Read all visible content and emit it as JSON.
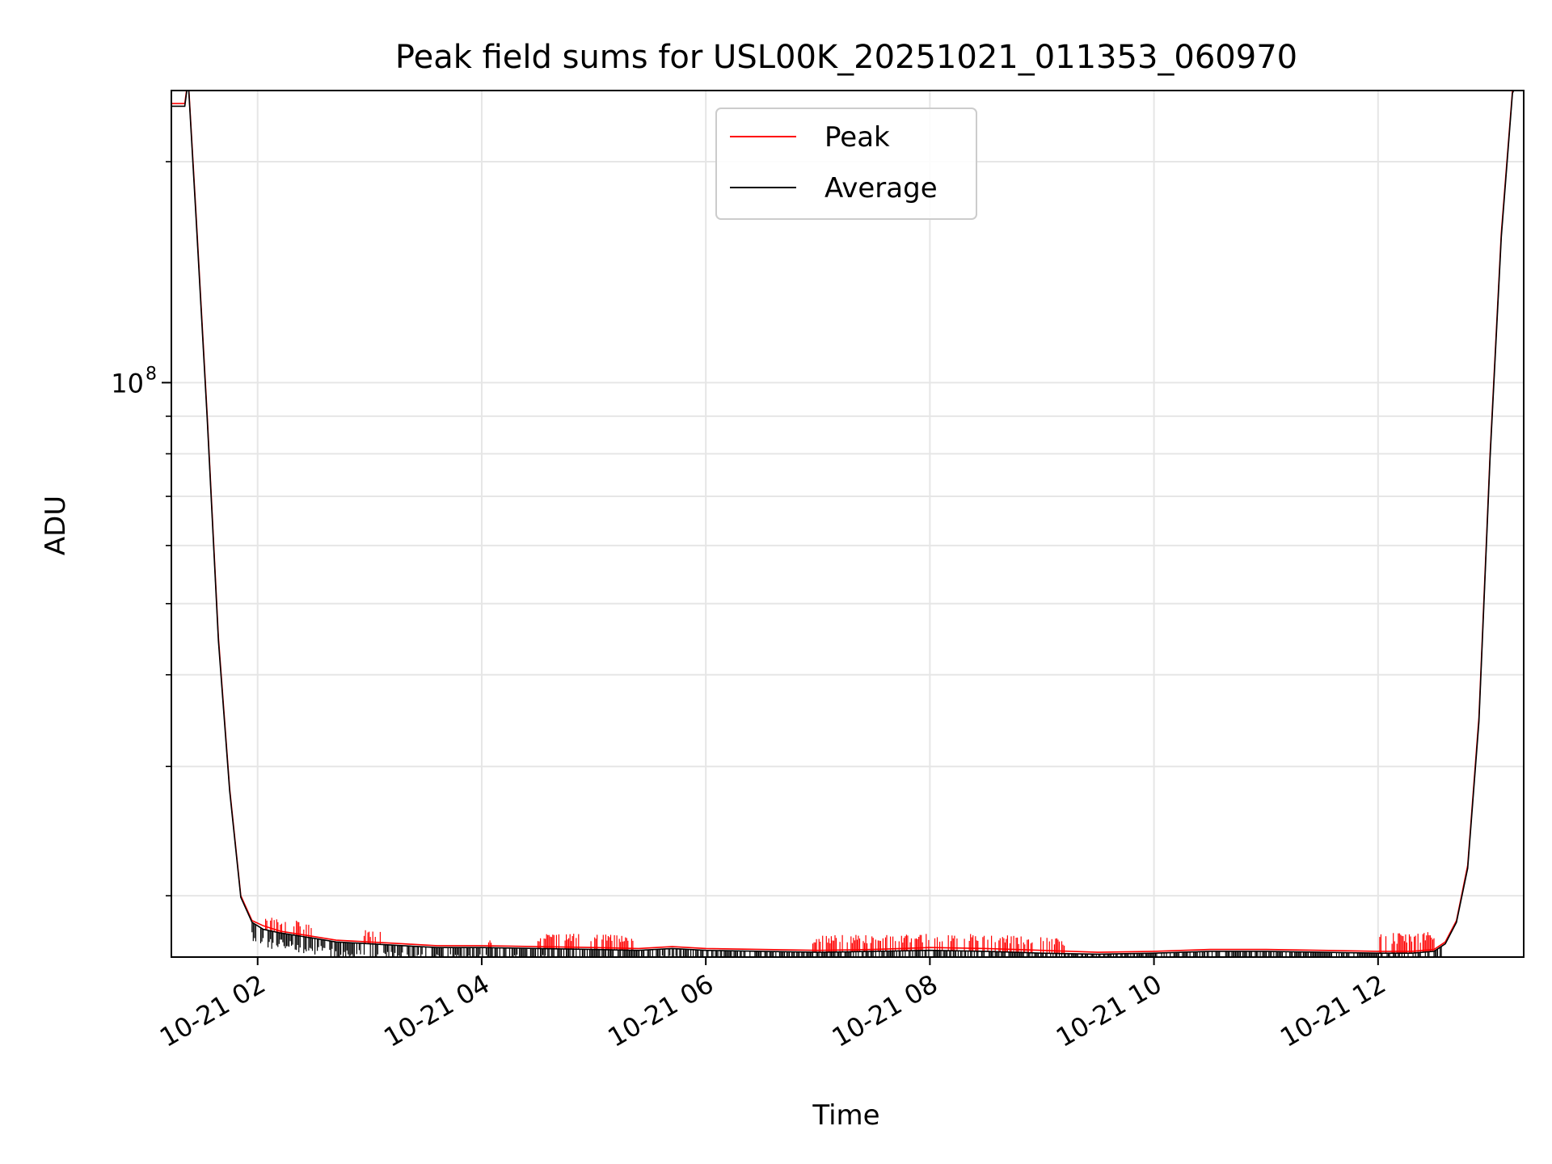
{
  "chart_data": {
    "type": "line",
    "title": "Peak field sums for USL00K_20251021_011353_060970",
    "xlabel": "Time",
    "ylabel": "ADU",
    "yscale": "log",
    "grid": true,
    "legend_position": "upper center",
    "x_units": "hours since 2025-10-21 00:00",
    "xlim": [
      1.23,
      13.3
    ],
    "ylim": [
      16500000,
      250000000
    ],
    "x_tick_values": [
      2,
      4,
      6,
      8,
      10,
      12
    ],
    "x_tick_labels": [
      "10-21 02",
      "10-21 04",
      "10-21 06",
      "10-21 08",
      "10-21 10",
      "10-21 12"
    ],
    "y_tick_major": {
      "value": 100000000,
      "base": "10",
      "exponent": "8"
    },
    "y_minor_ticks": [
      20000000,
      30000000,
      40000000,
      50000000,
      60000000,
      70000000,
      80000000,
      90000000,
      200000000
    ],
    "series": [
      {
        "name": "Peak",
        "color": "#ff0000",
        "x": [
          1.23,
          1.35,
          1.38,
          1.45,
          1.55,
          1.65,
          1.75,
          1.85,
          1.95,
          2.05,
          2.2,
          2.4,
          2.7,
          3.0,
          3.3,
          3.6,
          4.0,
          4.5,
          5.0,
          5.4,
          5.7,
          6.0,
          6.5,
          7.0,
          7.5,
          8.0,
          8.5,
          9.0,
          9.5,
          10.0,
          10.5,
          11.0,
          11.5,
          12.0,
          12.3,
          12.5,
          12.6,
          12.7,
          12.8,
          12.9,
          13.0,
          13.1,
          13.2,
          13.3
        ],
        "y": [
          240000000,
          240000000,
          260000000,
          170000000,
          90000000,
          45000000,
          28000000,
          20000000,
          18500000,
          18200000,
          17900000,
          17700000,
          17400000,
          17300000,
          17200000,
          17100000,
          17100000,
          17050000,
          17000000,
          16950000,
          17050000,
          16950000,
          16900000,
          16850000,
          16900000,
          17000000,
          16950000,
          16850000,
          16750000,
          16800000,
          16900000,
          16900000,
          16850000,
          16800000,
          16800000,
          16900000,
          17300000,
          18500000,
          22000000,
          35000000,
          80000000,
          160000000,
          250000000,
          270000000
        ]
      },
      {
        "name": "Average",
        "color": "#000000",
        "x": [
          1.23,
          1.35,
          1.38,
          1.45,
          1.55,
          1.65,
          1.75,
          1.85,
          1.95,
          2.05,
          2.2,
          2.4,
          2.7,
          3.0,
          3.3,
          3.6,
          4.0,
          4.5,
          5.0,
          5.4,
          5.7,
          6.0,
          6.5,
          7.0,
          7.5,
          8.0,
          8.5,
          9.0,
          9.5,
          10.0,
          10.5,
          11.0,
          11.5,
          12.0,
          12.3,
          12.5,
          12.6,
          12.7,
          12.8,
          12.9,
          13.0,
          13.1,
          13.2,
          13.3
        ],
        "y": [
          238000000,
          238000000,
          258000000,
          168000000,
          89000000,
          44500000,
          27800000,
          19900000,
          18400000,
          18000000,
          17800000,
          17600000,
          17300000,
          17200000,
          17100000,
          17000000,
          17000000,
          16950000,
          16900000,
          16850000,
          16950000,
          16850000,
          16800000,
          16750000,
          16800000,
          16850000,
          16800000,
          16700000,
          16650000,
          16700000,
          16800000,
          16800000,
          16750000,
          16700000,
          16700000,
          16800000,
          17200000,
          18400000,
          21800000,
          34500000,
          79000000,
          158000000,
          248000000,
          268000000
        ]
      }
    ]
  }
}
